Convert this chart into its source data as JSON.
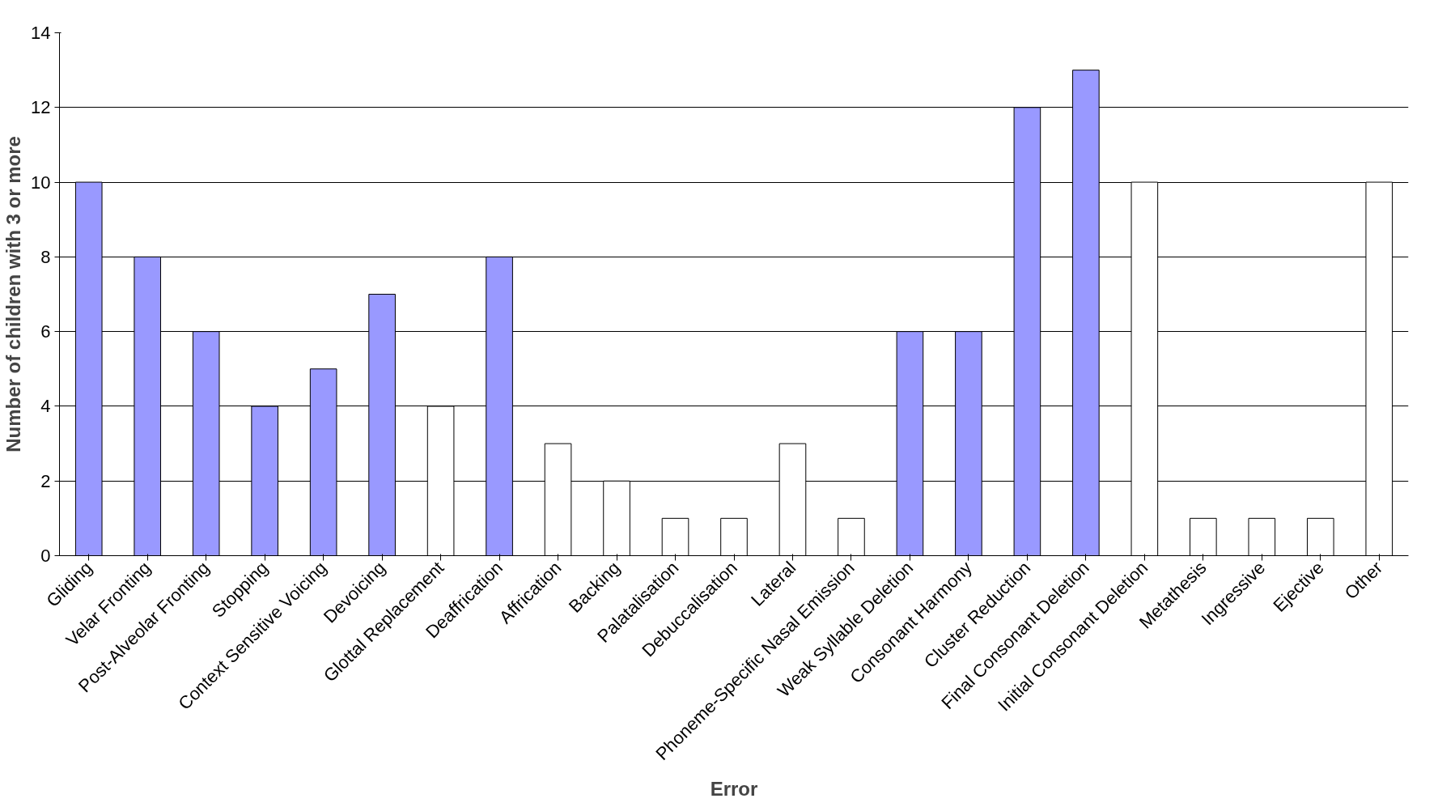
{
  "chart_data": {
    "type": "bar",
    "xlabel": "Error",
    "ylabel": "Number of children with 3 or more",
    "categories": [
      "Gliding",
      "Velar Fronting",
      "Post-Alveolar Fronting",
      "Stopping",
      "Context Sensitive Voicing",
      "Devoicing",
      "Glottal Replacement",
      "Deaffrication",
      "Affrication",
      "Backing",
      "Palatalisation",
      "Debuccalisation",
      "Lateral",
      "Phoneme-Specific Nasal Emission",
      "Weak Syllable Deletion",
      "Consonant Harmony",
      "Cluster Reduction",
      "Final Consonant Deletion",
      "Initial Consonant Deletion",
      "Metathesis",
      "Ingressive",
      "Ejective",
      "Other"
    ],
    "values": [
      10,
      8,
      6,
      4,
      5,
      7,
      4,
      8,
      3,
      2,
      1,
      1,
      3,
      1,
      6,
      6,
      12,
      13,
      10,
      1,
      1,
      1,
      10
    ],
    "colors": [
      "#9999ff",
      "#9999ff",
      "#9999ff",
      "#9999ff",
      "#9999ff",
      "#9999ff",
      "#ffffff",
      "#9999ff",
      "#ffffff",
      "#ffffff",
      "#ffffff",
      "#ffffff",
      "#ffffff",
      "#ffffff",
      "#9999ff",
      "#9999ff",
      "#9999ff",
      "#9999ff",
      "#ffffff",
      "#ffffff",
      "#ffffff",
      "#ffffff",
      "#ffffff"
    ],
    "ylim": [
      0,
      14
    ],
    "yticks": [
      0,
      2,
      4,
      6,
      8,
      10,
      12,
      14
    ],
    "grid": "y"
  }
}
